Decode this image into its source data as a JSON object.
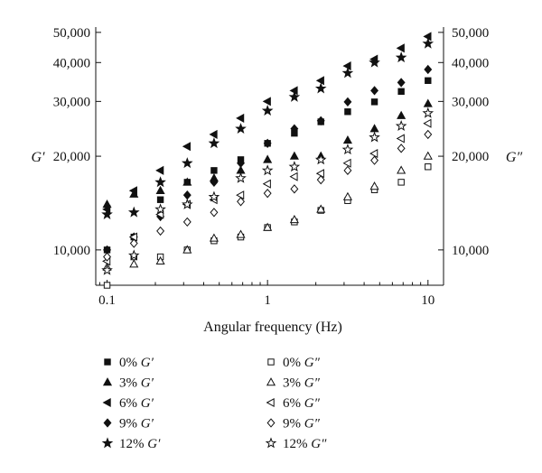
{
  "chart_data": {
    "type": "scatter",
    "x_scale": "log",
    "y_scale": "log",
    "xlim": [
      0.085,
      12.5
    ],
    "ylim": [
      7700,
      52000
    ],
    "xlabel": "Angular frequency (Hz)",
    "ylabel_left": "G′",
    "ylabel_right": "G″",
    "x_ticks": [
      0.1,
      1,
      10
    ],
    "x_tick_labels": [
      "0.1",
      "1",
      "10"
    ],
    "y_ticks": [
      10000,
      20000,
      30000,
      40000,
      50000
    ],
    "y_tick_labels": [
      "10,000",
      "20,000",
      "30,000",
      "40,000",
      "50,000"
    ],
    "grid": false,
    "legend_position": "bottom",
    "x": [
      0.1,
      0.147,
      0.215,
      0.316,
      0.464,
      0.681,
      1.0,
      1.47,
      2.15,
      3.16,
      4.64,
      6.81,
      10.0
    ],
    "series": [
      {
        "name": "0% G′",
        "prefix": "0% ",
        "symbol": "G′",
        "marker": "square",
        "filled": true,
        "values": [
          10000,
          11000,
          14500,
          16500,
          18000,
          19500,
          22000,
          23700,
          25800,
          27800,
          29900,
          32300,
          35000
        ]
      },
      {
        "name": "3% G′",
        "prefix": "3% ",
        "symbol": "G′",
        "marker": "triangle-up",
        "filled": true,
        "values": [
          14000,
          15100,
          15500,
          16500,
          17000,
          18000,
          19500,
          20000,
          20000,
          22500,
          24500,
          27000,
          29500
        ]
      },
      {
        "name": "6% G′",
        "prefix": "6% ",
        "symbol": "G′",
        "marker": "triangle-left",
        "filled": true,
        "values": [
          13500,
          15500,
          18000,
          21500,
          23500,
          26500,
          30000,
          32500,
          35000,
          39000,
          41000,
          44500,
          48500
        ]
      },
      {
        "name": "9% G′",
        "prefix": "9% ",
        "symbol": "G′",
        "marker": "diamond",
        "filled": true,
        "values": [
          10000,
          11000,
          12800,
          15000,
          16500,
          19000,
          22000,
          24500,
          26000,
          29900,
          32500,
          34500,
          38000
        ]
      },
      {
        "name": "12% G′",
        "prefix": "12% ",
        "symbol": "G′",
        "marker": "star",
        "filled": true,
        "values": [
          13000,
          13200,
          16500,
          19000,
          22000,
          24500,
          28000,
          31000,
          33000,
          37000,
          40000,
          41500,
          46000
        ]
      },
      {
        "name": "0% G″",
        "prefix": "0% ",
        "symbol": "G″",
        "marker": "square",
        "filled": false,
        "values": [
          7700,
          9500,
          9500,
          10000,
          10700,
          11000,
          11800,
          12300,
          13400,
          14400,
          15600,
          16500,
          18500
        ]
      },
      {
        "name": "3% G″",
        "prefix": "3% ",
        "symbol": "G″",
        "marker": "triangle-up",
        "filled": false,
        "values": [
          8800,
          9000,
          9200,
          10000,
          10900,
          11200,
          11800,
          12500,
          13500,
          14800,
          16000,
          18000,
          20000
        ]
      },
      {
        "name": "6% G″",
        "prefix": "6% ",
        "symbol": "G″",
        "marker": "triangle-left",
        "filled": false,
        "values": [
          9200,
          11000,
          13000,
          14000,
          14500,
          15000,
          16300,
          17200,
          17600,
          19000,
          20400,
          22800,
          25500
        ]
      },
      {
        "name": "9% G″",
        "prefix": "9% ",
        "symbol": "G″",
        "marker": "diamond",
        "filled": false,
        "values": [
          9500,
          10500,
          11500,
          12300,
          13200,
          14300,
          15200,
          15700,
          16800,
          18000,
          19400,
          21200,
          23500
        ]
      },
      {
        "name": "12% G″",
        "prefix": "12% ",
        "symbol": "G″",
        "marker": "star",
        "filled": false,
        "values": [
          8600,
          9600,
          13500,
          14000,
          14800,
          17000,
          18000,
          18500,
          19500,
          21000,
          23000,
          25000,
          27500
        ]
      }
    ]
  }
}
